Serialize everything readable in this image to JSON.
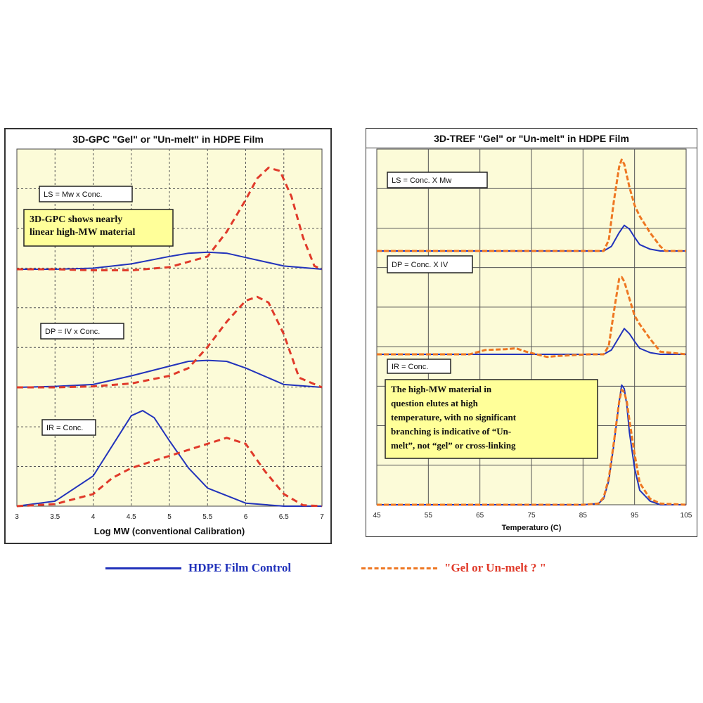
{
  "colors": {
    "control": "#2233bb",
    "gel": "#e03a2a",
    "gel_tref": "#ee7722",
    "panel_bg": "#fcfbd8",
    "grid": "#555555",
    "note_bg": "#ffff99"
  },
  "legend": {
    "control_label": "HDPE Film Control",
    "gel_label": "\"Gel or Un-melt ? \""
  },
  "chart_data": [
    {
      "type": "line",
      "title": "3D-GPC \"Gel\" or \"Un-melt\" in HDPE Film",
      "xlabel": "Log MW (conventional Calibration)",
      "ylabel": "",
      "xlim": [
        3,
        7
      ],
      "x_ticks": [
        3,
        3.5,
        4,
        4.5,
        5,
        5.5,
        6,
        6.5,
        7
      ],
      "x_tick_labels": [
        "3",
        "3.5",
        "4",
        "4.5",
        "5",
        "5.5",
        "6",
        "6.5",
        "7"
      ],
      "grid": true,
      "detector_labels": [
        "LS = Mw x Conc.",
        "DP = IV x Conc.",
        "IR = Conc."
      ],
      "annotations": [
        "3D-GPC shows nearly linear high-MW material"
      ],
      "tracks": [
        {
          "name": "LS",
          "series": [
            {
              "name": "HDPE Film Control",
              "x": [
                3,
                3.5,
                4,
                4.5,
                5,
                5.25,
                5.5,
                5.75,
                6,
                6.5,
                7
              ],
              "y": [
                0,
                0,
                0.01,
                0.05,
                0.12,
                0.15,
                0.16,
                0.15,
                0.11,
                0.03,
                0
              ]
            },
            {
              "name": "Gel or Un-melt ?",
              "x": [
                3,
                3.5,
                4,
                4.5,
                5,
                5.5,
                5.75,
                6,
                6.15,
                6.3,
                6.45,
                6.6,
                6.75,
                6.9,
                7
              ],
              "y": [
                0,
                0,
                -0.01,
                -0.01,
                0.02,
                0.12,
                0.35,
                0.65,
                0.85,
                0.95,
                0.92,
                0.68,
                0.3,
                0.03,
                0
              ]
            }
          ]
        },
        {
          "name": "DP",
          "series": [
            {
              "name": "HDPE Film Control",
              "x": [
                3,
                3.5,
                4,
                4.5,
                5,
                5.25,
                5.5,
                5.75,
                6,
                6.5,
                7
              ],
              "y": [
                0,
                0.01,
                0.03,
                0.12,
                0.22,
                0.27,
                0.28,
                0.27,
                0.2,
                0.03,
                0
              ]
            },
            {
              "name": "Gel or Un-melt ?",
              "x": [
                3,
                3.5,
                4,
                4.5,
                5,
                5.25,
                5.5,
                5.75,
                6,
                6.15,
                6.3,
                6.5,
                6.7,
                7
              ],
              "y": [
                0,
                0,
                0.01,
                0.04,
                0.12,
                0.2,
                0.42,
                0.68,
                0.9,
                0.94,
                0.88,
                0.55,
                0.1,
                0
              ]
            }
          ]
        },
        {
          "name": "IR",
          "series": [
            {
              "name": "HDPE Film Control",
              "x": [
                3,
                3.5,
                4,
                4.25,
                4.5,
                4.65,
                4.8,
                5,
                5.25,
                5.5,
                6,
                6.5,
                7
              ],
              "y": [
                0,
                0.05,
                0.3,
                0.6,
                0.9,
                0.95,
                0.88,
                0.65,
                0.38,
                0.18,
                0.03,
                0,
                0
              ]
            },
            {
              "name": "Gel or Un-melt ?",
              "x": [
                3,
                3.5,
                4,
                4.25,
                4.5,
                4.75,
                5,
                5.25,
                5.5,
                5.75,
                6,
                6.25,
                6.5,
                6.75,
                7
              ],
              "y": [
                0,
                0.02,
                0.12,
                0.28,
                0.38,
                0.44,
                0.5,
                0.56,
                0.62,
                0.68,
                0.62,
                0.35,
                0.12,
                0.01,
                0
              ]
            }
          ]
        }
      ]
    },
    {
      "type": "line",
      "title": "3D-TREF \"Gel\" or \"Un-melt\" in HDPE Film",
      "xlabel": "Temperaturo (C)",
      "ylabel": "",
      "xlim": [
        45,
        105
      ],
      "x_ticks": [
        45,
        55,
        65,
        75,
        85,
        95,
        105
      ],
      "x_tick_labels": [
        "45",
        "55",
        "65",
        "75",
        "85",
        "95",
        "105"
      ],
      "grid": true,
      "detector_labels": [
        "LS = Conc. X Mw",
        "DP = Conc. X IV",
        "IR = Conc."
      ],
      "annotations": [
        "The high-MW material in question elutes at high temperature, with no significant branching is indicative of “Un-melt”, not “gel” or cross-linking"
      ],
      "tracks": [
        {
          "name": "LS",
          "series": [
            {
              "name": "HDPE Film Control",
              "x": [
                45,
                85,
                89,
                90.5,
                92,
                93,
                94,
                95,
                96,
                98,
                100,
                105
              ],
              "y": [
                0,
                0,
                0,
                0.05,
                0.2,
                0.28,
                0.24,
                0.15,
                0.07,
                0.02,
                0,
                0
              ]
            },
            {
              "name": "Gel or Un-melt ?",
              "x": [
                45,
                85,
                89,
                90,
                91,
                92,
                92.5,
                93,
                94,
                95,
                96,
                98,
                100,
                101,
                105
              ],
              "y": [
                0,
                0,
                0,
                0.12,
                0.55,
                0.92,
                1.0,
                0.95,
                0.7,
                0.5,
                0.38,
                0.2,
                0.05,
                0,
                0
              ]
            }
          ]
        },
        {
          "name": "DP",
          "series": [
            {
              "name": "HDPE Film Control",
              "x": [
                45,
                85,
                89,
                90.5,
                92,
                93,
                94,
                95,
                96,
                98,
                100,
                105
              ],
              "y": [
                0,
                0,
                0,
                0.05,
                0.2,
                0.3,
                0.24,
                0.15,
                0.07,
                0.02,
                0,
                0
              ]
            },
            {
              "name": "Gel or Un-melt ?",
              "x": [
                45,
                63,
                66,
                70,
                72,
                74,
                76,
                78,
                80,
                83,
                86,
                89,
                90,
                91,
                92,
                92.5,
                93,
                94,
                95,
                96,
                98,
                100,
                105
              ],
              "y": [
                0,
                0,
                0.05,
                0.06,
                0.07,
                0.03,
                0.0,
                -0.03,
                -0.02,
                -0.01,
                0,
                0,
                0.1,
                0.5,
                0.88,
                0.9,
                0.85,
                0.65,
                0.45,
                0.35,
                0.18,
                0.03,
                0
              ]
            }
          ]
        },
        {
          "name": "IR",
          "series": [
            {
              "name": "HDPE Film Control",
              "x": [
                45,
                85,
                88,
                89,
                90,
                91,
                92,
                92.5,
                93,
                93.5,
                94,
                95,
                96,
                98,
                100,
                105
              ],
              "y": [
                0,
                0,
                0.01,
                0.05,
                0.2,
                0.5,
                0.85,
                0.99,
                0.96,
                0.82,
                0.6,
                0.3,
                0.12,
                0.03,
                0,
                0
              ]
            },
            {
              "name": "Gel or Un-melt ?",
              "x": [
                45,
                85,
                88,
                89,
                90,
                91,
                92,
                92.5,
                93,
                93.5,
                94,
                95,
                96,
                98,
                100,
                105
              ],
              "y": [
                0,
                0,
                0.01,
                0.06,
                0.22,
                0.52,
                0.85,
                0.95,
                0.93,
                0.85,
                0.7,
                0.42,
                0.18,
                0.05,
                0.01,
                0
              ]
            }
          ]
        }
      ]
    }
  ]
}
